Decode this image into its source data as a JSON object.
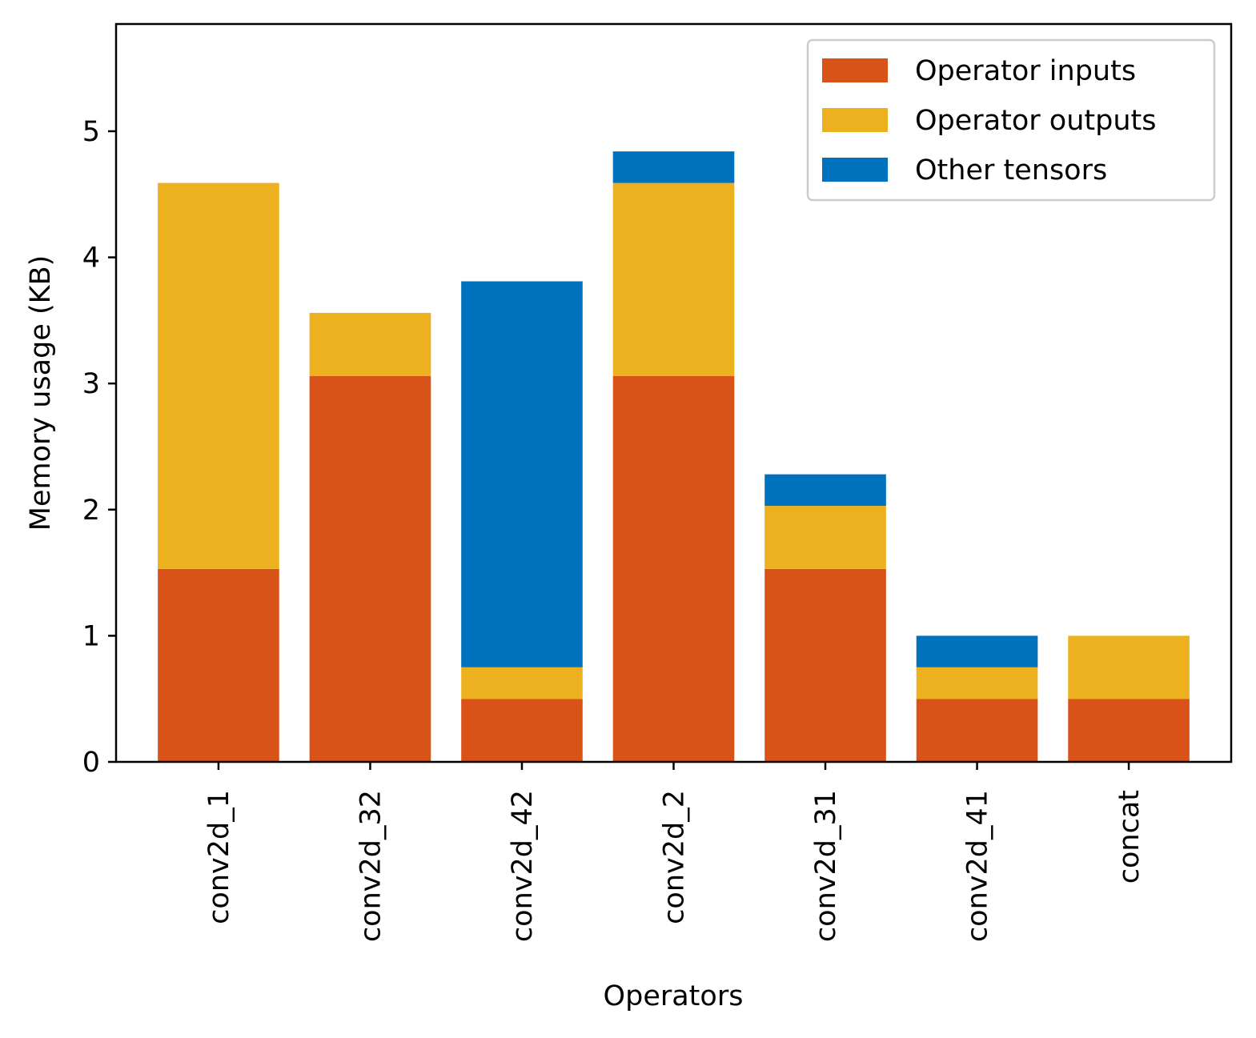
{
  "chart_data": {
    "type": "bar",
    "stacked": true,
    "title": "",
    "xlabel": "Operators",
    "ylabel": "Memory usage (KB)",
    "ylim": [
      0,
      5.85
    ],
    "yticks": [
      "0",
      "1",
      "2",
      "3",
      "4",
      "5"
    ],
    "grid": false,
    "legend_position": "top-right",
    "categories": [
      "conv2d_1",
      "conv2d_32",
      "conv2d_42",
      "conv2d_2",
      "conv2d_31",
      "conv2d_41",
      "concat"
    ],
    "series": [
      {
        "name": "Operator inputs",
        "color": "#D95319",
        "values": [
          1.53,
          3.06,
          0.5,
          3.06,
          1.53,
          0.5,
          0.5
        ]
      },
      {
        "name": "Operator outputs",
        "color": "#EDB120",
        "values": [
          3.06,
          0.5,
          0.25,
          1.53,
          0.5,
          0.25,
          0.5
        ]
      },
      {
        "name": "Other tensors",
        "color": "#0072BD",
        "values": [
          0,
          0,
          3.06,
          0.25,
          0.25,
          0.25,
          0
        ]
      }
    ]
  }
}
